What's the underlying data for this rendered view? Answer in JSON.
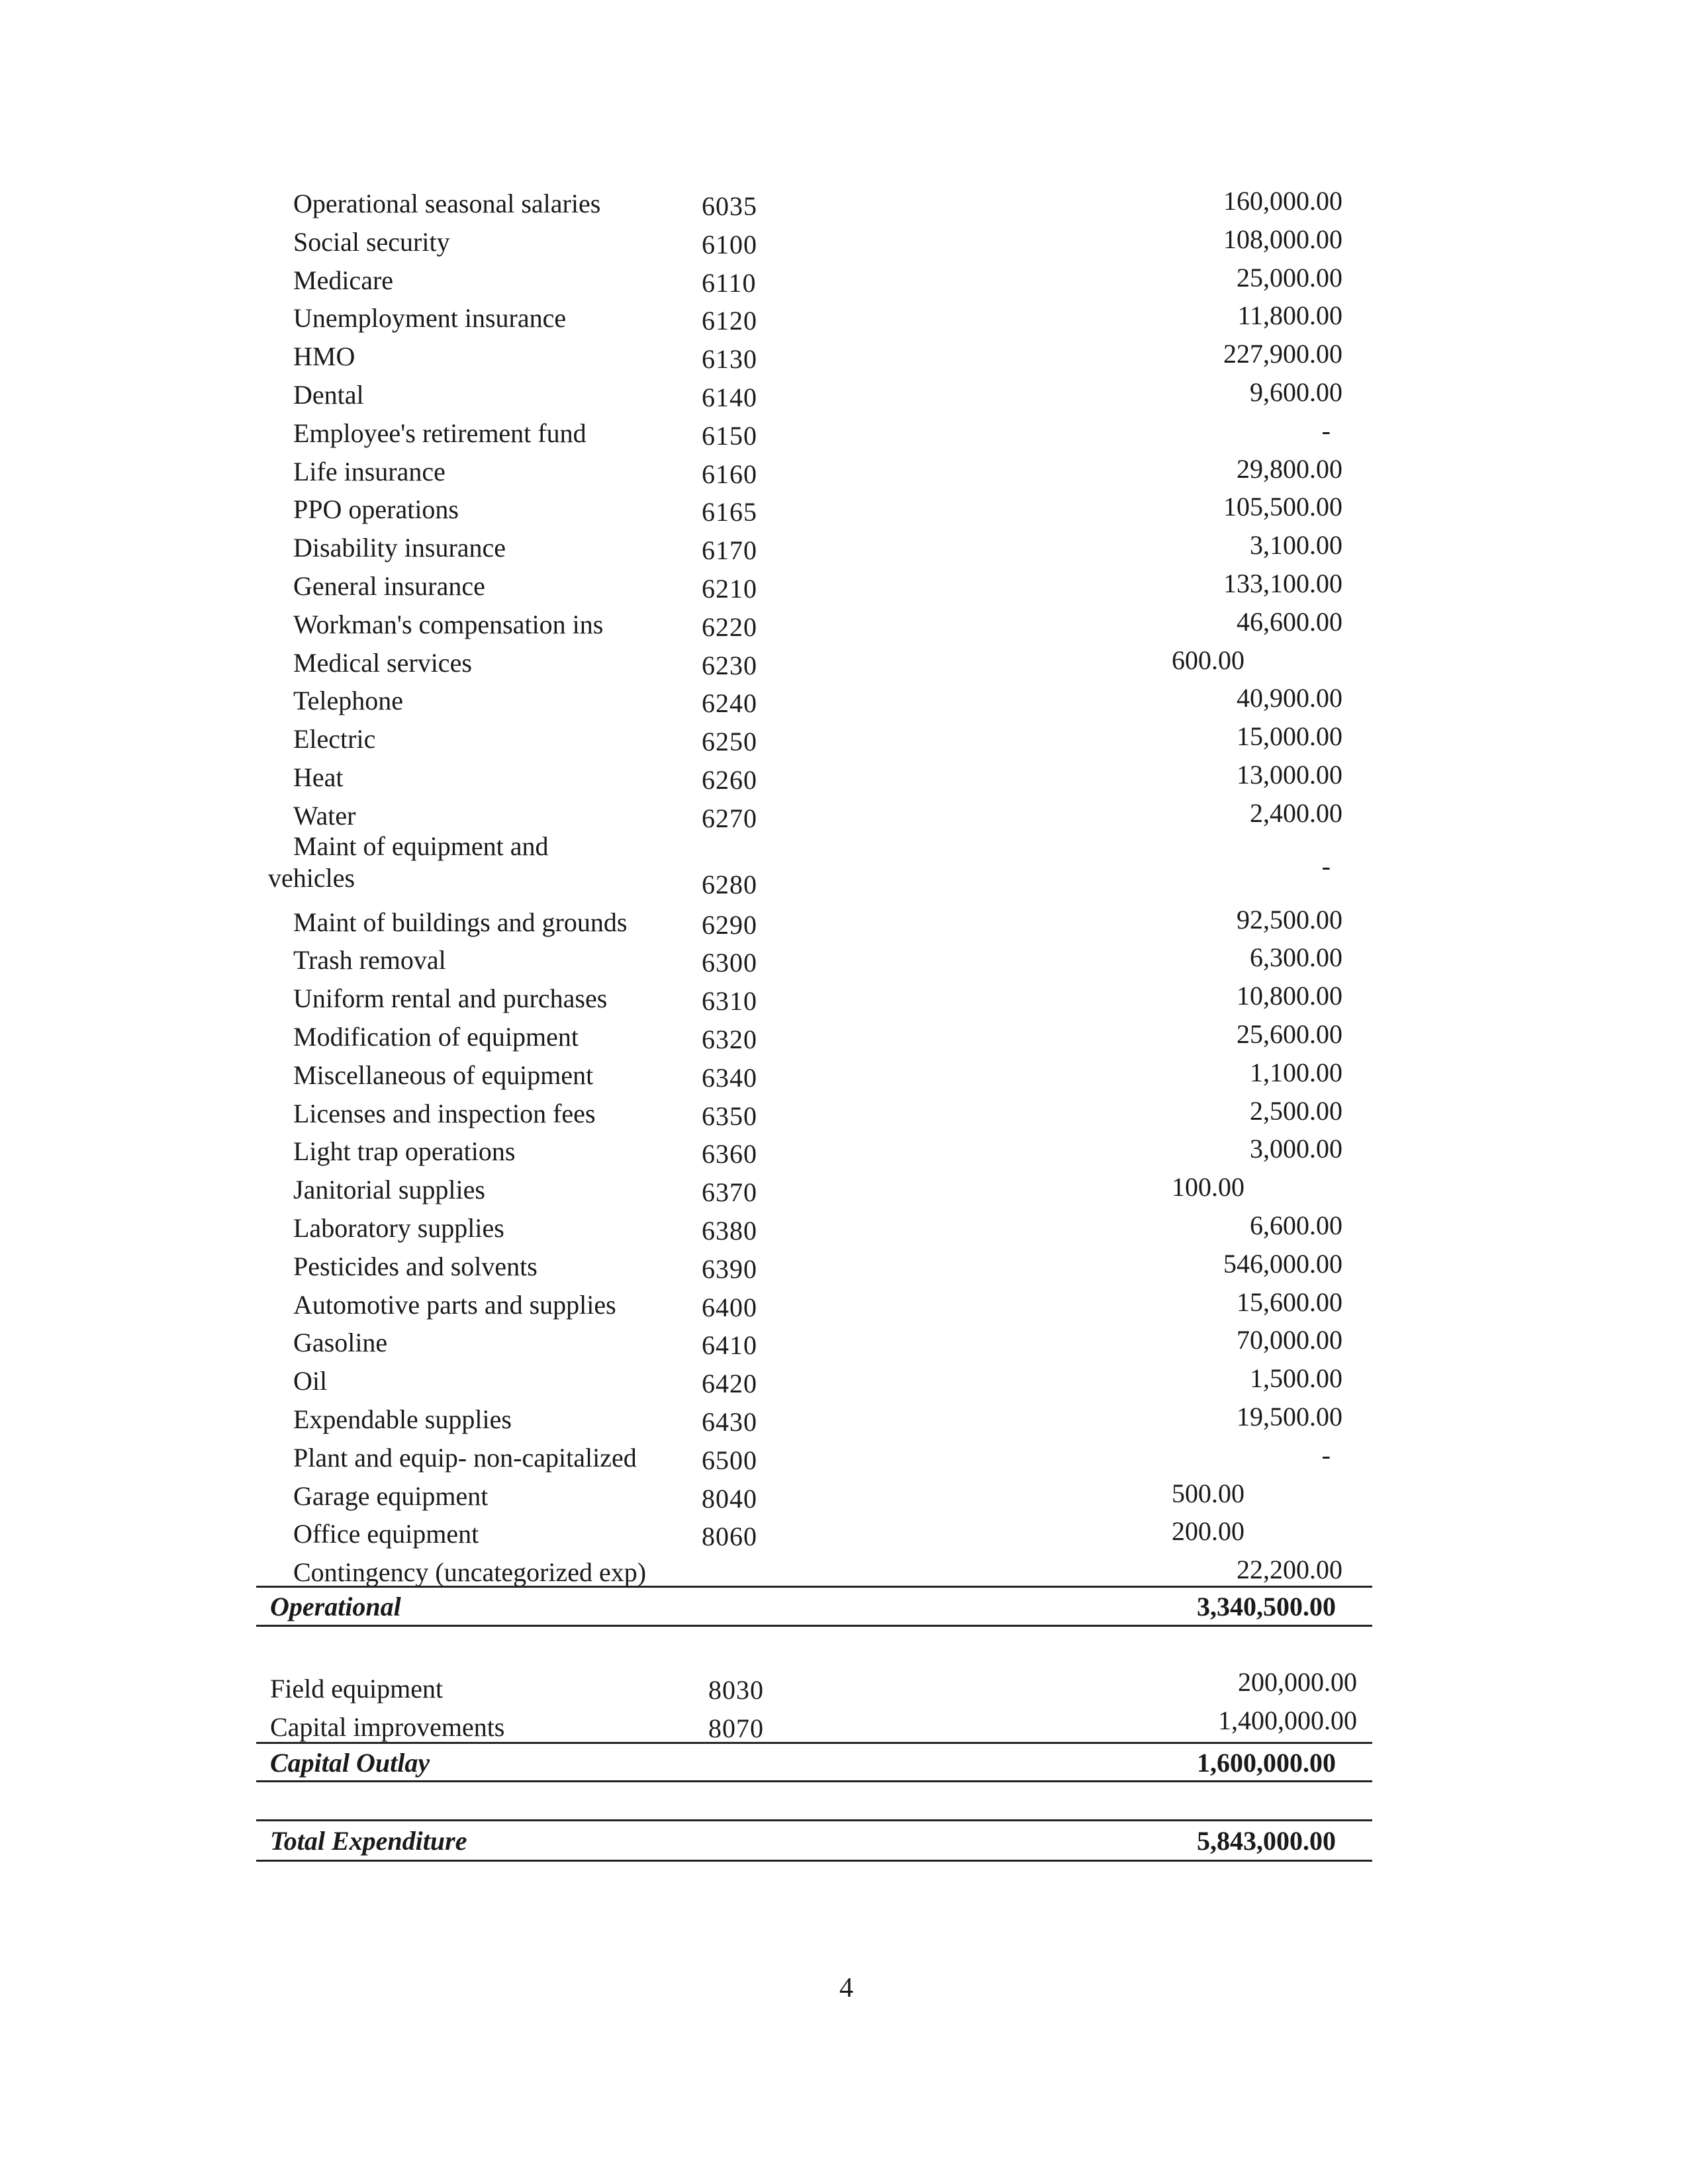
{
  "operational": {
    "rows": [
      {
        "label": "Operational seasonal salaries",
        "code": "6035",
        "amount": "160,000.00"
      },
      {
        "label": "Social security",
        "code": "6100",
        "amount": "108,000.00"
      },
      {
        "label": "Medicare",
        "code": "6110",
        "amount": "25,000.00"
      },
      {
        "label": "Unemployment insurance",
        "code": "6120",
        "amount": "11,800.00"
      },
      {
        "label": "HMO",
        "code": "6130",
        "amount": "227,900.00"
      },
      {
        "label": "Dental",
        "code": "6140",
        "amount": "9,600.00"
      },
      {
        "label": "Employee's retirement fund",
        "code": "6150",
        "amount": "-"
      },
      {
        "label": "Life insurance",
        "code": "6160",
        "amount": "29,800.00"
      },
      {
        "label": "PPO operations",
        "code": "6165",
        "amount": "105,500.00"
      },
      {
        "label": "Disability insurance",
        "code": "6170",
        "amount": "3,100.00"
      },
      {
        "label": "General insurance",
        "code": "6210",
        "amount": "133,100.00"
      },
      {
        "label": "Workman's compensation ins",
        "code": "6220",
        "amount": "46,600.00"
      },
      {
        "label": "Medical services",
        "code": "6230",
        "amount": "600.00",
        "subcolumn": true
      },
      {
        "label": "Telephone",
        "code": "6240",
        "amount": "40,900.00"
      },
      {
        "label": "Electric",
        "code": "6250",
        "amount": "15,000.00"
      },
      {
        "label": "Heat",
        "code": "6260",
        "amount": "13,000.00"
      },
      {
        "label": "Water",
        "code": "6270",
        "amount": "2,400.00"
      },
      {
        "label": "Maint of equipment and",
        "label_line2": "vehicles",
        "code": "6280",
        "amount": "-"
      },
      {
        "label": "Maint of buildings and grounds",
        "code": "6290",
        "amount": "92,500.00"
      },
      {
        "label": "Trash removal",
        "code": "6300",
        "amount": "6,300.00"
      },
      {
        "label": "Uniform rental and purchases",
        "code": "6310",
        "amount": "10,800.00"
      },
      {
        "label": "Modification of equipment",
        "code": "6320",
        "amount": "25,600.00"
      },
      {
        "label": "Miscellaneous of equipment",
        "code": "6340",
        "amount": "1,100.00"
      },
      {
        "label": "Licenses and inspection fees",
        "code": "6350",
        "amount": "2,500.00"
      },
      {
        "label": "Light trap operations",
        "code": "6360",
        "amount": "3,000.00"
      },
      {
        "label": "Janitorial supplies",
        "code": "6370",
        "amount": "100.00",
        "subcolumn": true
      },
      {
        "label": "Laboratory supplies",
        "code": "6380",
        "amount": "6,600.00"
      },
      {
        "label": "Pesticides and solvents",
        "code": "6390",
        "amount": "546,000.00"
      },
      {
        "label": "Automotive parts and supplies",
        "code": "6400",
        "amount": "15,600.00"
      },
      {
        "label": "Gasoline",
        "code": "6410",
        "amount": "70,000.00"
      },
      {
        "label": "Oil",
        "code": "6420",
        "amount": "1,500.00"
      },
      {
        "label": "Expendable supplies",
        "code": "6430",
        "amount": "19,500.00"
      },
      {
        "label": "Plant and equip- non-capitalized",
        "code": "6500",
        "amount": "-"
      },
      {
        "label": "Garage equipment",
        "code": "8040",
        "amount": "500.00",
        "subcolumn": true
      },
      {
        "label": "Office equipment",
        "code": "8060",
        "amount": "200.00",
        "subcolumn": true
      },
      {
        "label": "Contingency (uncategorized exp)",
        "code": "",
        "amount": "22,200.00"
      }
    ],
    "total_label": "Operational",
    "total_amount": "3,340,500.00"
  },
  "capital": {
    "rows": [
      {
        "label": "Field equipment",
        "code": "8030",
        "amount": "200,000.00"
      },
      {
        "label": "Capital improvements",
        "code": "8070",
        "amount": "1,400,000.00"
      }
    ],
    "total_label": "Capital Outlay",
    "total_amount": "1,600,000.00"
  },
  "grand_total": {
    "label": "Total Expenditure",
    "amount": "5,843,000.00"
  },
  "page_number": "4"
}
